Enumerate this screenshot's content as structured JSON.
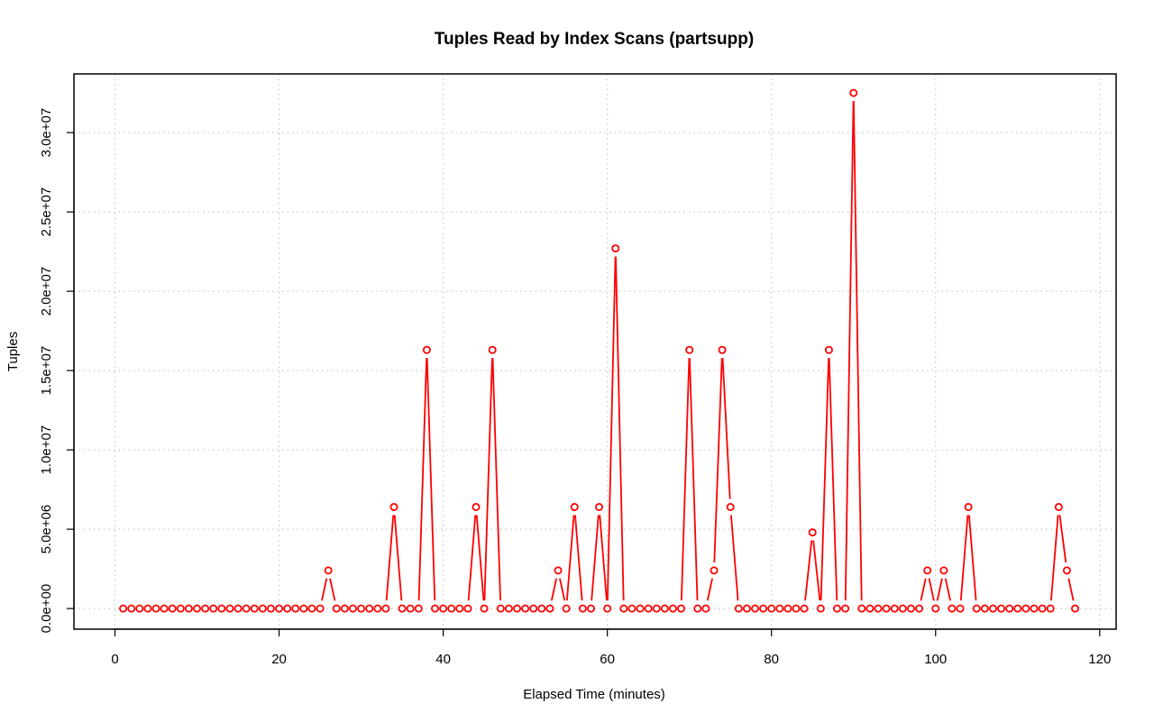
{
  "chart_data": {
    "type": "line",
    "title": "Tuples Read by Index Scans (partsupp)",
    "xlabel": "Elapsed Time (minutes)",
    "ylabel": "Tuples",
    "xlim": [
      -5,
      122
    ],
    "ylim": [
      -1300000,
      33700000
    ],
    "x_ticks": [
      0,
      20,
      40,
      60,
      80,
      100,
      120
    ],
    "x_tick_labels": [
      "0",
      "20",
      "40",
      "60",
      "80",
      "100",
      "120"
    ],
    "y_ticks": [
      0,
      5000000,
      10000000,
      15000000,
      20000000,
      25000000,
      30000000
    ],
    "y_tick_labels": [
      "0.0e+00",
      "5.0e+06",
      "1.0e+07",
      "1.5e+07",
      "2.0e+07",
      "2.5e+07",
      "3.0e+07"
    ],
    "grid": true,
    "series": [
      {
        "color": "#ff0000",
        "marker": "open-circle",
        "x": [
          1,
          2,
          3,
          4,
          5,
          6,
          7,
          8,
          9,
          10,
          11,
          12,
          13,
          14,
          15,
          16,
          17,
          18,
          19,
          20,
          21,
          22,
          23,
          24,
          25,
          26,
          27,
          28,
          29,
          30,
          31,
          32,
          33,
          34,
          35,
          36,
          37,
          38,
          39,
          40,
          41,
          42,
          43,
          44,
          45,
          46,
          47,
          48,
          49,
          50,
          51,
          52,
          53,
          54,
          55,
          56,
          57,
          58,
          59,
          60,
          61,
          62,
          63,
          64,
          65,
          66,
          67,
          68,
          69,
          70,
          71,
          72,
          73,
          74,
          75,
          76,
          77,
          78,
          79,
          80,
          81,
          82,
          83,
          84,
          85,
          86,
          87,
          88,
          89,
          90,
          91,
          92,
          93,
          94,
          95,
          96,
          97,
          98,
          99,
          100,
          101,
          102,
          103,
          104,
          105,
          106,
          107,
          108,
          109,
          110,
          111,
          112,
          113,
          114,
          115,
          116,
          117
        ],
        "y": [
          0,
          0,
          0,
          0,
          0,
          0,
          0,
          0,
          0,
          0,
          0,
          0,
          0,
          0,
          0,
          0,
          0,
          0,
          0,
          0,
          0,
          0,
          0,
          0,
          0,
          2400000,
          0,
          0,
          0,
          0,
          0,
          0,
          0,
          6400000,
          0,
          0,
          0,
          16300000,
          0,
          0,
          0,
          0,
          0,
          6400000,
          0,
          16300000,
          0,
          0,
          0,
          0,
          0,
          0,
          0,
          2400000,
          0,
          6400000,
          0,
          0,
          6400000,
          0,
          22700000,
          0,
          0,
          0,
          0,
          0,
          0,
          0,
          0,
          16300000,
          0,
          0,
          2400000,
          16300000,
          6400000,
          0,
          0,
          0,
          0,
          0,
          0,
          0,
          0,
          0,
          4800000,
          0,
          16300000,
          0,
          0,
          32500000,
          0,
          0,
          0,
          0,
          0,
          0,
          0,
          0,
          2400000,
          0,
          2400000,
          0,
          0,
          6400000,
          0,
          0,
          0,
          0,
          0,
          0,
          0,
          0,
          0,
          0,
          6400000,
          2400000,
          0
        ]
      }
    ]
  }
}
